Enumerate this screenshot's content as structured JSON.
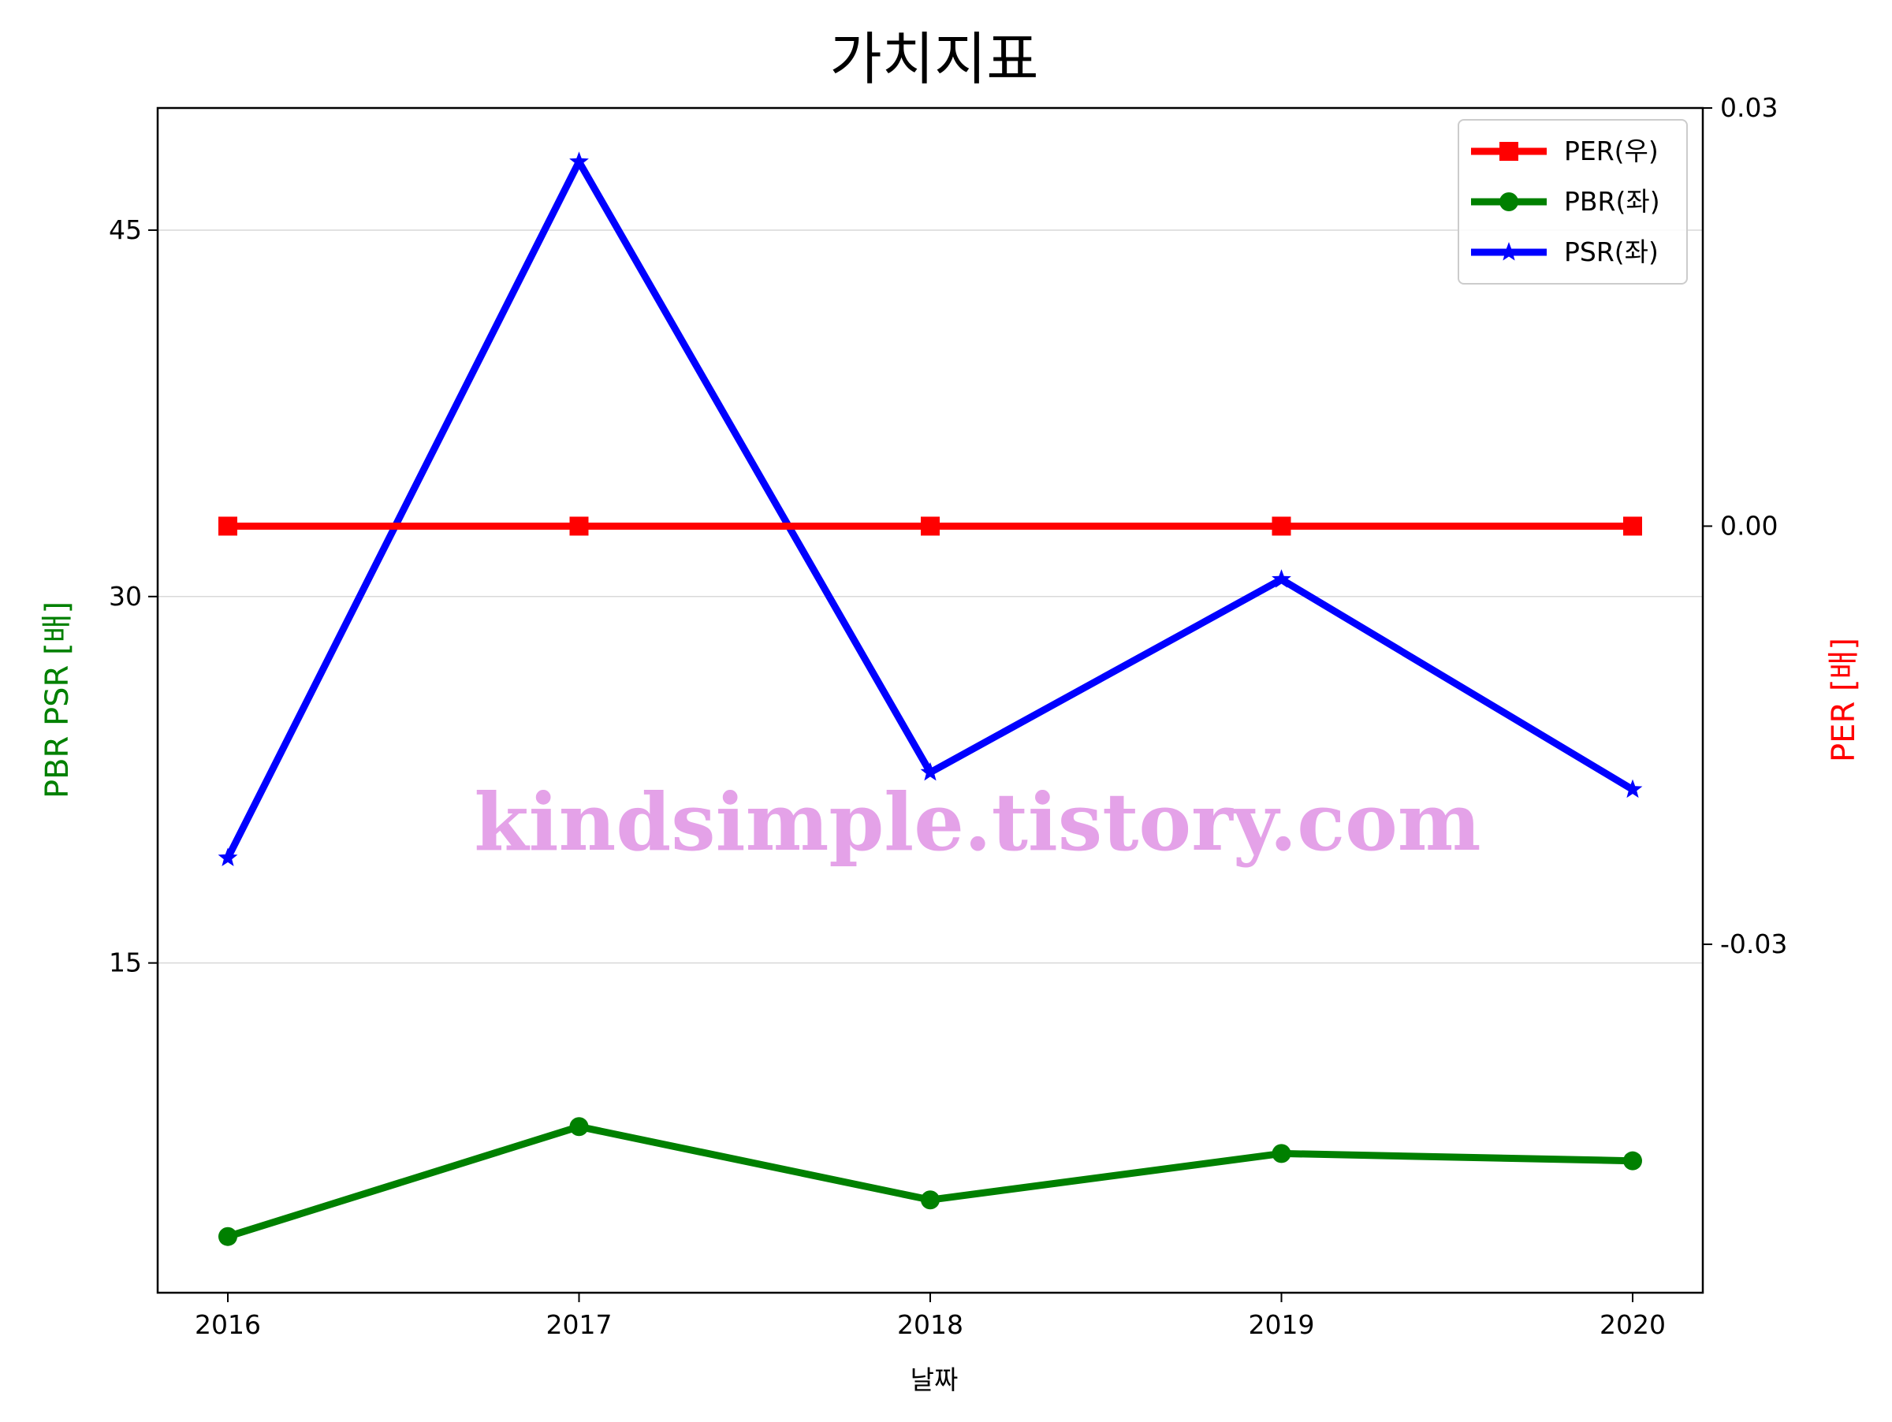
{
  "chart_data": {
    "type": "line",
    "title": "가치지표",
    "xlabel": "날짜",
    "ylabel_left": "PBR PSR [배]",
    "ylabel_right": "PER [배]",
    "categories": [
      "2016",
      "2017",
      "2018",
      "2019",
      "2020"
    ],
    "left_axis": {
      "ticks": [
        15,
        30,
        45
      ],
      "tick_labels": [
        "15",
        "30",
        "45"
      ],
      "ylim": [
        1.5,
        50
      ],
      "grid": true
    },
    "right_axis": {
      "ticks": [
        -0.03,
        0.0,
        0.03
      ],
      "tick_labels": [
        "-0.03",
        "0.00",
        "0.03"
      ],
      "ylim": [
        -0.055,
        0.03
      ],
      "grid": false
    },
    "series": [
      {
        "name": "PER(우)",
        "axis": "right",
        "color": "#ff0000",
        "marker": "square",
        "values": [
          0.0,
          0.0,
          0.0,
          0.0,
          0.0
        ]
      },
      {
        "name": "PBR(좌)",
        "axis": "left",
        "color": "#008000",
        "marker": "circle",
        "values": [
          3.8,
          8.3,
          5.3,
          7.2,
          6.9
        ]
      },
      {
        "name": "PSR(좌)",
        "axis": "left",
        "color": "#0000ff",
        "marker": "star",
        "values": [
          19.3,
          47.8,
          22.8,
          30.7,
          22.1
        ]
      }
    ],
    "legend": {
      "placement": "top-right",
      "entries": [
        "PER(우)",
        "PBR(좌)",
        "PSR(좌)"
      ]
    },
    "watermark": "kindsimple.tistory.com"
  }
}
